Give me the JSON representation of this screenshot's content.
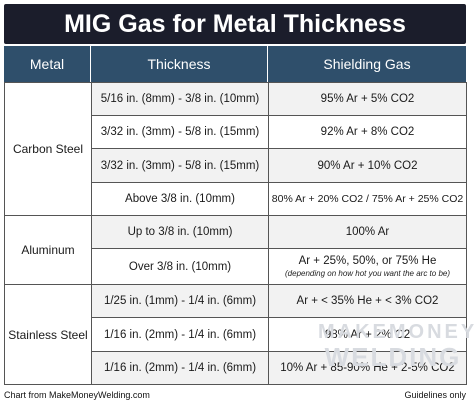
{
  "title": "MIG Gas for Metal Thickness",
  "headers": {
    "metal": "Metal",
    "thickness": "Thickness",
    "gas": "Shielding Gas"
  },
  "groups": [
    {
      "metal": "Carbon Steel",
      "rows": [
        {
          "thickness": "5/16 in. (8mm) - 3/8 in. (10mm)",
          "gas": "95% Ar + 5% CO2"
        },
        {
          "thickness": "3/32 in. (3mm) - 5/8 in. (15mm)",
          "gas": "92% Ar + 8% CO2"
        },
        {
          "thickness": "3/32 in. (3mm) - 5/8 in. (15mm)",
          "gas": "90% Ar + 10% CO2"
        },
        {
          "thickness": "Above 3/8 in. (10mm)",
          "gas": "80% Ar + 20% CO2  / 75% Ar + 25% CO2"
        }
      ]
    },
    {
      "metal": "Aluminum",
      "rows": [
        {
          "thickness": "Up to 3/8 in. (10mm)",
          "gas": "100% Ar"
        },
        {
          "thickness": "Over 3/8 in. (10mm)",
          "gas": "Ar + 25%, 50%, or 75% He",
          "note": "(depending on how hot you want the arc to be)"
        }
      ]
    },
    {
      "metal": "Stainless Steel",
      "rows": [
        {
          "thickness": "1/25 in. (1mm) - 1/4 in. (6mm)",
          "gas": "Ar + < 35% He + < 3% CO2"
        },
        {
          "thickness": "1/16 in. (2mm) - 1/4 in. (6mm)",
          "gas": "98% Ar + 2% O2"
        },
        {
          "thickness": "1/16 in. (2mm) - 1/4 in. (6mm)",
          "gas": "10% Ar + 85-90% He + 2-5% CO2"
        }
      ]
    }
  ],
  "watermark": {
    "line1": "MAKEMONEY",
    "line2": "WELDING"
  },
  "footer": {
    "left": "Chart from MakeMoneyWelding.com",
    "right": "Guidelines only"
  },
  "colors": {
    "title_bg": "#1b1d2b",
    "header_bg": "#2f4f6b",
    "row_alt_bg": "#f2f2f2",
    "row_bg": "#ffffff",
    "border": "#555555"
  }
}
